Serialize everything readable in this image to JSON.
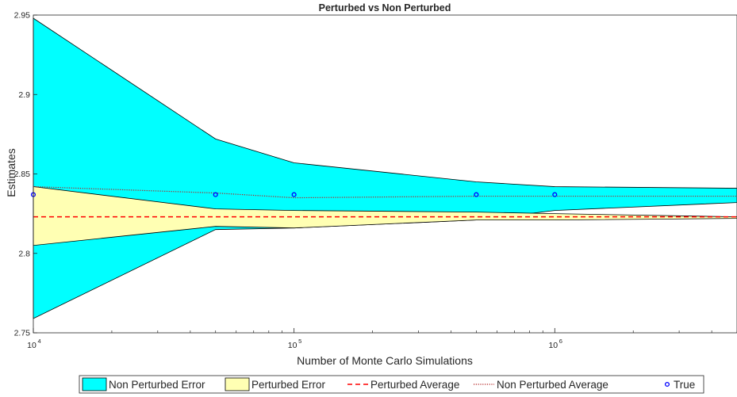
{
  "chart_data": {
    "type": "area",
    "title": "Perturbed vs Non Perturbed",
    "xlabel": "Number of Monte Carlo Simulations",
    "ylabel": "Estimates",
    "xscale": "log",
    "xlim": [
      10000,
      5000000
    ],
    "ylim": [
      2.75,
      2.95
    ],
    "grid": false,
    "legend_position": "bottom",
    "x": [
      10000,
      50000,
      100000,
      500000,
      1000000,
      5000000
    ],
    "y_ticks": [
      2.75,
      2.8,
      2.85,
      2.9,
      2.95
    ],
    "y_tick_labels": [
      "2.75",
      "2.8",
      "2.85",
      "2.9",
      "2.95"
    ],
    "x_ticks": [
      10000,
      100000,
      1000000
    ],
    "x_tick_labels": [
      {
        "base": "10",
        "exp": "4"
      },
      {
        "base": "10",
        "exp": "5"
      },
      {
        "base": "10",
        "exp": "6"
      }
    ],
    "series": [
      {
        "name": "Non Perturbed Error",
        "kind": "band",
        "color": "#00ffff",
        "upper": [
          2.948,
          2.872,
          2.857,
          2.845,
          2.842,
          2.841
        ],
        "lower": [
          2.759,
          2.815,
          2.816,
          2.821,
          2.827,
          2.832
        ]
      },
      {
        "name": "Perturbed Error",
        "kind": "band",
        "color": "#ffffb3",
        "upper": [
          2.842,
          2.828,
          2.827,
          2.826,
          2.825,
          2.823
        ],
        "lower": [
          2.805,
          2.817,
          2.816,
          2.821,
          2.821,
          2.822
        ]
      },
      {
        "name": "Perturbed Average",
        "kind": "line",
        "style": "dashed",
        "color": "#ff0000",
        "values": [
          2.823,
          2.823,
          2.823,
          2.823,
          2.823,
          2.823
        ]
      },
      {
        "name": "Non Perturbed Average",
        "kind": "line",
        "style": "dotted",
        "color": "#b22222",
        "values": [
          2.842,
          2.838,
          2.835,
          2.836,
          2.836,
          2.836
        ]
      },
      {
        "name": "True",
        "kind": "markers",
        "color": "#0000ff",
        "x": [
          10000,
          50000,
          100000,
          500000,
          1000000
        ],
        "values": [
          2.837,
          2.837,
          2.837,
          2.837,
          2.837
        ]
      }
    ]
  }
}
